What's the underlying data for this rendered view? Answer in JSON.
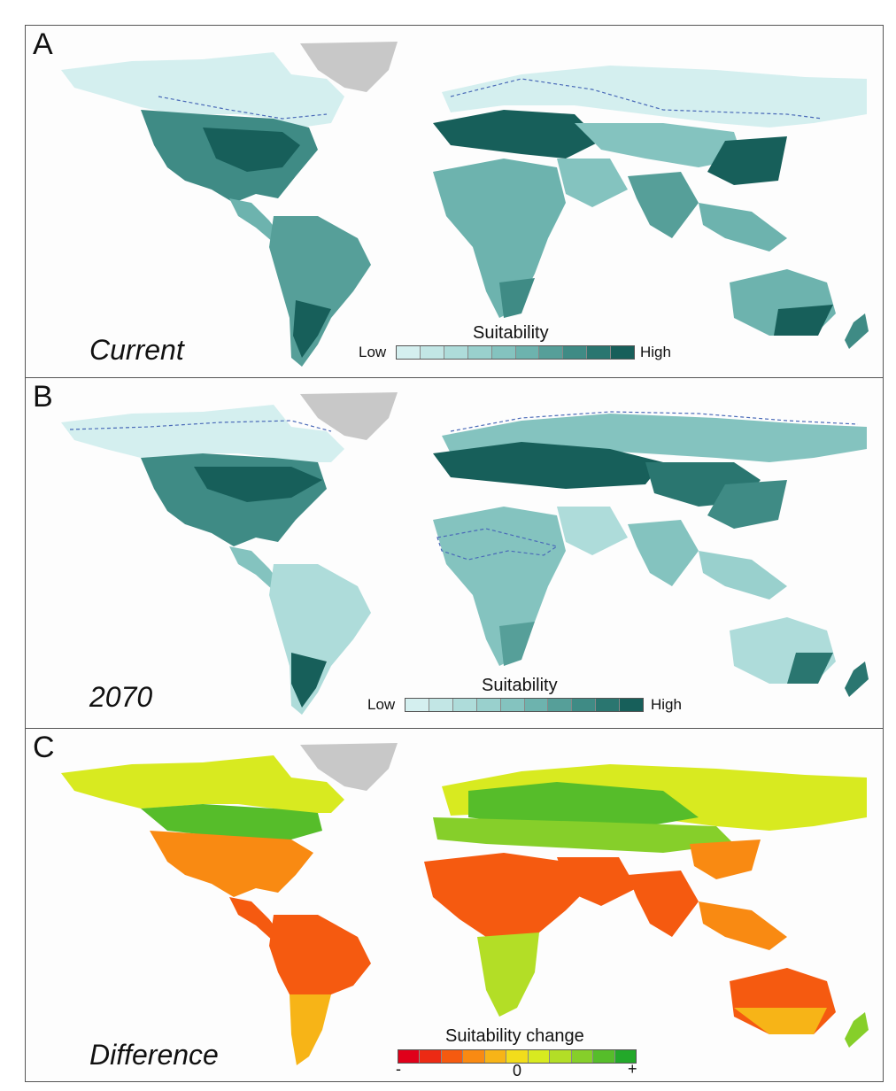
{
  "panels": [
    {
      "letter": "A",
      "scenario": "Current",
      "legend": {
        "title": "Suitability",
        "low": "Low",
        "high": "High",
        "colors": [
          "#d4efef",
          "#c2e6e5",
          "#aedcda",
          "#99d0cd",
          "#84c3bf",
          "#6db3ae",
          "#569f99",
          "#3f8b85",
          "#2a7670",
          "#175f5a"
        ]
      }
    },
    {
      "letter": "B",
      "scenario": "2070",
      "legend": {
        "title": "Suitability",
        "low": "Low",
        "high": "High",
        "colors": [
          "#d4efef",
          "#c2e6e5",
          "#aedcda",
          "#99d0cd",
          "#84c3bf",
          "#6db3ae",
          "#569f99",
          "#3f8b85",
          "#2a7670",
          "#175f5a"
        ]
      }
    },
    {
      "letter": "C",
      "scenario": "Difference",
      "legend": {
        "title": "Suitability change",
        "minus": "-",
        "zero": "0",
        "plus": "+",
        "colors": [
          "#e0001a",
          "#ec2a14",
          "#f55a10",
          "#f98a12",
          "#f7b417",
          "#f2dd1b",
          "#d8ea20",
          "#b3de26",
          "#86cf2a",
          "#56bd2a",
          "#23a82a"
        ]
      }
    }
  ],
  "map_colors": {
    "greenland": "#c8c8c8",
    "ocean": "#fdfdfd",
    "boundary_dashed": "#4a6ab8"
  }
}
